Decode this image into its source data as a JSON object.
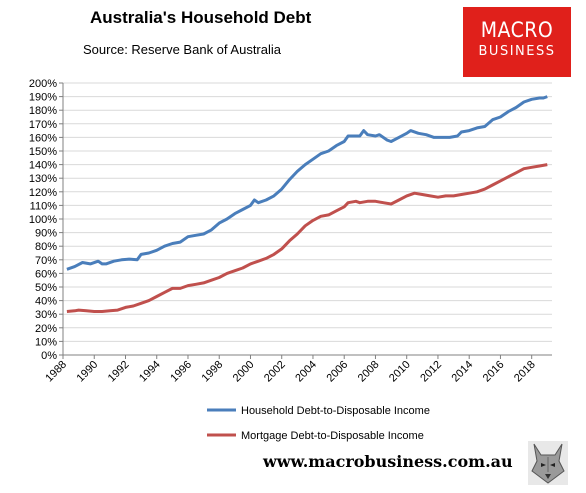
{
  "header": {
    "title": "Australia's Household Debt",
    "subtitle": "Source: Reserve Bank of Australia"
  },
  "logo": {
    "line1": "MACRO",
    "line2": "BUSINESS",
    "color": "#e0201b"
  },
  "footer": {
    "url": "www.macrobusiness.com.au"
  },
  "chart_data": {
    "type": "line",
    "title": "Australia's Household Debt",
    "xlim": [
      1988,
      2019.3
    ],
    "ylim": [
      0,
      200
    ],
    "x_ticks": [
      "1988",
      "1990",
      "1992",
      "1994",
      "1996",
      "1998",
      "2000",
      "2002",
      "2004",
      "2006",
      "2008",
      "2010",
      "2012",
      "2014",
      "2016",
      "2018"
    ],
    "y_ticks": [
      "0%",
      "10%",
      "20%",
      "30%",
      "40%",
      "50%",
      "60%",
      "70%",
      "80%",
      "90%",
      "100%",
      "110%",
      "120%",
      "130%",
      "140%",
      "150%",
      "160%",
      "170%",
      "180%",
      "190%",
      "200%"
    ],
    "grid": "horizontal",
    "legend_position": "bottom",
    "series": [
      {
        "name": "Household Debt-to-Disposable Income",
        "color": "#4a7ebb",
        "points": [
          [
            1988.25,
            63
          ],
          [
            1988.75,
            65
          ],
          [
            1989.25,
            68
          ],
          [
            1989.75,
            67
          ],
          [
            1990.25,
            69
          ],
          [
            1990.5,
            67
          ],
          [
            1990.75,
            67
          ],
          [
            1991.25,
            69
          ],
          [
            1991.75,
            70
          ],
          [
            1992.25,
            70.5
          ],
          [
            1992.75,
            70
          ],
          [
            1993.0,
            74
          ],
          [
            1993.5,
            75
          ],
          [
            1994.0,
            77
          ],
          [
            1994.5,
            80
          ],
          [
            1995.0,
            82
          ],
          [
            1995.5,
            83
          ],
          [
            1996.0,
            87
          ],
          [
            1996.5,
            88
          ],
          [
            1997.0,
            89
          ],
          [
            1997.5,
            92
          ],
          [
            1998.0,
            97
          ],
          [
            1998.5,
            100
          ],
          [
            1999.0,
            104
          ],
          [
            1999.5,
            107
          ],
          [
            2000.0,
            110
          ],
          [
            2000.25,
            114
          ],
          [
            2000.5,
            112
          ],
          [
            2001.0,
            114
          ],
          [
            2001.5,
            117
          ],
          [
            2002.0,
            122
          ],
          [
            2002.5,
            129
          ],
          [
            2003.0,
            135
          ],
          [
            2003.5,
            140
          ],
          [
            2004.0,
            144
          ],
          [
            2004.5,
            148
          ],
          [
            2005.0,
            150
          ],
          [
            2005.5,
            154
          ],
          [
            2006.0,
            157
          ],
          [
            2006.25,
            161
          ],
          [
            2006.75,
            161
          ],
          [
            2007.0,
            161
          ],
          [
            2007.25,
            165
          ],
          [
            2007.5,
            162
          ],
          [
            2008.0,
            161
          ],
          [
            2008.25,
            162
          ],
          [
            2008.75,
            158
          ],
          [
            2009.0,
            157
          ],
          [
            2009.5,
            160
          ],
          [
            2010.0,
            163
          ],
          [
            2010.25,
            165
          ],
          [
            2010.75,
            163
          ],
          [
            2011.25,
            162
          ],
          [
            2011.75,
            160
          ],
          [
            2012.25,
            160
          ],
          [
            2012.75,
            160
          ],
          [
            2013.25,
            161
          ],
          [
            2013.5,
            164
          ],
          [
            2014.0,
            165
          ],
          [
            2014.5,
            167
          ],
          [
            2015.0,
            168
          ],
          [
            2015.5,
            173
          ],
          [
            2016.0,
            175
          ],
          [
            2016.5,
            179
          ],
          [
            2017.0,
            182
          ],
          [
            2017.5,
            186
          ],
          [
            2018.0,
            188
          ],
          [
            2018.5,
            189
          ],
          [
            2018.75,
            189
          ],
          [
            2019.0,
            190
          ]
        ]
      },
      {
        "name": "Mortgage Debt-to-Disposable Income",
        "color": "#c0504d",
        "points": [
          [
            1988.25,
            32
          ],
          [
            1988.75,
            32.5
          ],
          [
            1989.0,
            33
          ],
          [
            1989.5,
            32.5
          ],
          [
            1990.0,
            32
          ],
          [
            1990.5,
            32
          ],
          [
            1991.0,
            32.5
          ],
          [
            1991.5,
            33
          ],
          [
            1992.0,
            35
          ],
          [
            1992.5,
            36
          ],
          [
            1993.0,
            38
          ],
          [
            1993.5,
            40
          ],
          [
            1994.0,
            43
          ],
          [
            1994.5,
            46
          ],
          [
            1995.0,
            49
          ],
          [
            1995.5,
            49
          ],
          [
            1996.0,
            51
          ],
          [
            1996.5,
            52
          ],
          [
            1997.0,
            53
          ],
          [
            1997.5,
            55
          ],
          [
            1998.0,
            57
          ],
          [
            1998.5,
            60
          ],
          [
            1999.0,
            62
          ],
          [
            1999.5,
            64
          ],
          [
            2000.0,
            67
          ],
          [
            2000.5,
            69
          ],
          [
            2001.0,
            71
          ],
          [
            2001.5,
            74
          ],
          [
            2002.0,
            78
          ],
          [
            2002.5,
            84
          ],
          [
            2003.0,
            89
          ],
          [
            2003.5,
            95
          ],
          [
            2004.0,
            99
          ],
          [
            2004.5,
            102
          ],
          [
            2005.0,
            103
          ],
          [
            2005.5,
            106
          ],
          [
            2006.0,
            109
          ],
          [
            2006.25,
            112
          ],
          [
            2006.75,
            113
          ],
          [
            2007.0,
            112
          ],
          [
            2007.5,
            113
          ],
          [
            2008.0,
            113
          ],
          [
            2008.5,
            112
          ],
          [
            2009.0,
            111
          ],
          [
            2009.5,
            114
          ],
          [
            2010.0,
            117
          ],
          [
            2010.5,
            119
          ],
          [
            2011.0,
            118
          ],
          [
            2011.5,
            117
          ],
          [
            2012.0,
            116
          ],
          [
            2012.5,
            117
          ],
          [
            2013.0,
            117
          ],
          [
            2013.5,
            118
          ],
          [
            2014.0,
            119
          ],
          [
            2014.5,
            120
          ],
          [
            2015.0,
            122
          ],
          [
            2015.5,
            125
          ],
          [
            2016.0,
            128
          ],
          [
            2016.5,
            131
          ],
          [
            2017.0,
            134
          ],
          [
            2017.5,
            137
          ],
          [
            2018.0,
            138
          ],
          [
            2018.5,
            139
          ],
          [
            2019.0,
            140
          ]
        ]
      }
    ]
  }
}
